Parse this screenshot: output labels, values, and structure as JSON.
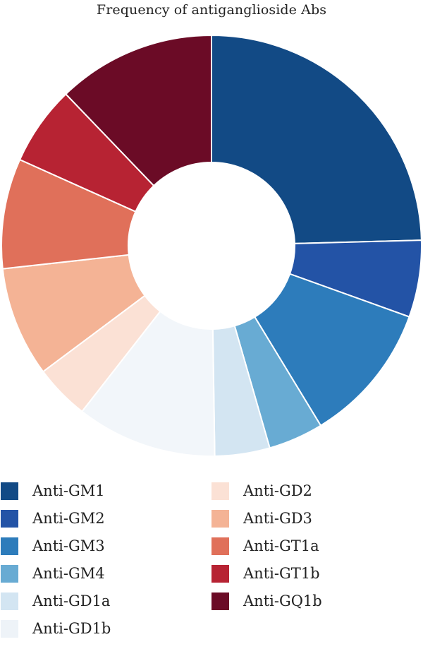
{
  "chart_data": {
    "type": "pie",
    "donut": true,
    "title": "Frequency of antiganglioside Abs",
    "legend_placement": "bottom",
    "categories": [
      "Anti-GM1",
      "Anti-GM2",
      "Anti-GM3",
      "Anti-GM4",
      "Anti-GD1a",
      "Anti-GD1b",
      "Anti-GD2",
      "Anti-GD3",
      "Anti-GT1a",
      "Anti-GT1b",
      "Anti-GQ1b"
    ],
    "values": [
      25.0,
      6.0,
      11.0,
      4.3,
      4.3,
      11.0,
      4.3,
      8.6,
      8.6,
      6.2,
      12.4
    ],
    "colors": [
      "#124a85",
      "#2353a6",
      "#2d7cbb",
      "#68abd3",
      "#d3e5f2",
      "#f2f6fa",
      "#fbe1d5",
      "#f4b395",
      "#e0705a",
      "#b72333",
      "#6b0b26"
    ]
  }
}
